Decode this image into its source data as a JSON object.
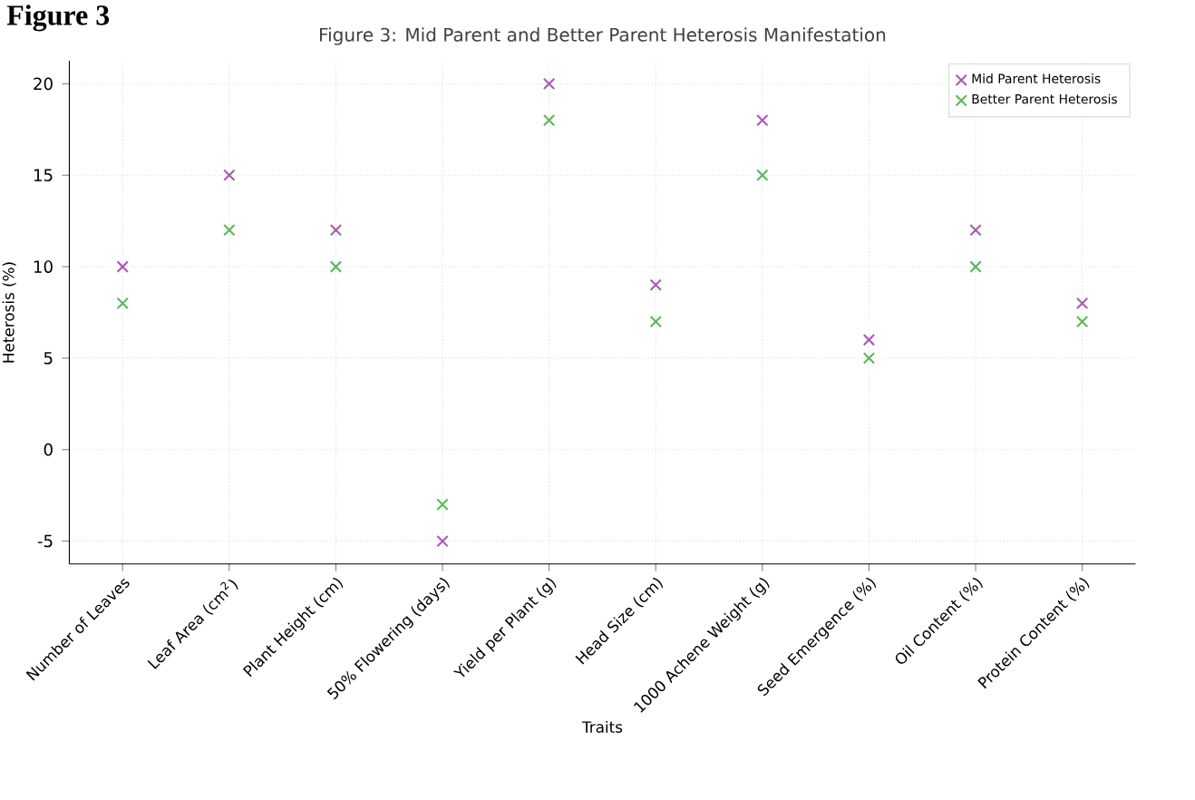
{
  "chart_data": {
    "type": "scatter",
    "title": "Figure 3: Mid Parent and Better Parent Heterosis Manifestation",
    "xlabel": "Traits",
    "ylabel": "Heterosis (%)",
    "annotations": [
      "Figure 3"
    ],
    "categories": [
      "Number of Leaves",
      "Leaf Area (cm$^{2}$)",
      "Plant Height (cm)",
      "50% Flowering (days)",
      "Yield per Plant (g)",
      "Head Size (cm)",
      "1000 Achene Weight (g)",
      "Seed Emergence (%)",
      "Oil Content (%)",
      "Protein Content (%)"
    ],
    "series": [
      {
        "name": "Mid Parent Heterosis",
        "color": "#a95bb5",
        "values": [
          10,
          15,
          12,
          -5,
          20,
          9,
          18,
          6,
          12,
          8
        ]
      },
      {
        "name": "Better Parent Heterosis",
        "color": "#5cb85c",
        "values": [
          8,
          12,
          10,
          -3,
          18,
          7,
          15,
          5,
          10,
          7
        ]
      }
    ],
    "ylim": [
      -6.25,
      21.25
    ],
    "yticks": [
      -5,
      0,
      5,
      10,
      15,
      20
    ],
    "grid": true,
    "legend": "top right",
    "marker": "cross"
  }
}
